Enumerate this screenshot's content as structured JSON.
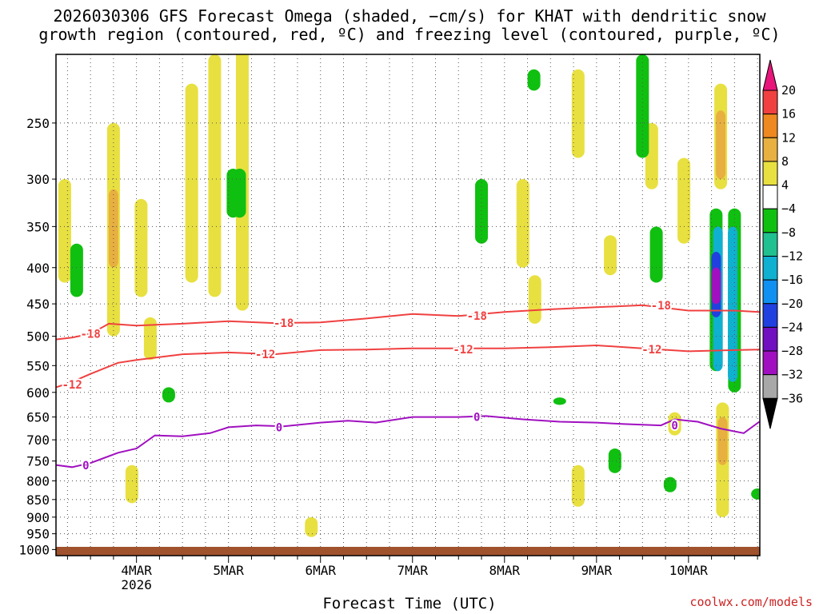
{
  "chart_data": {
    "type": "heatmap",
    "title_line1": "2026030306 GFS Forecast Omega (shaded, −cm/s) for KHAT with dendritic snow",
    "title_line2": "growth region (contoured, red, ºC) and freezing level (contoured, purple, ºC)",
    "xlabel": "Forecast Time (UTC)",
    "credit": "coolwx.com/models",
    "yaxis": {
      "scale": "pressure",
      "ticks": [
        250,
        300,
        350,
        400,
        450,
        500,
        550,
        600,
        650,
        700,
        750,
        800,
        850,
        900,
        950,
        1000
      ],
      "range": [
        1020,
        200
      ]
    },
    "xaxis": {
      "range_days": [
        3.125,
        10.775
      ],
      "ticks": [
        {
          "value": 4,
          "label": "4MAR",
          "sublabel": "2026"
        },
        {
          "value": 5,
          "label": "5MAR"
        },
        {
          "value": 6,
          "label": "6MAR"
        },
        {
          "value": 7,
          "label": "7MAR"
        },
        {
          "value": 8,
          "label": "8MAR"
        },
        {
          "value": 9,
          "label": "9MAR"
        },
        {
          "value": 10,
          "label": "10MAR"
        }
      ]
    },
    "grid": true,
    "colorbar": {
      "labels": [
        "20",
        "16",
        "12",
        "8",
        "4",
        "−4",
        "−8",
        "−12",
        "−16",
        "−20",
        "−24",
        "−28",
        "−32",
        "−36"
      ],
      "colors": [
        "#e8157a",
        "#f04040",
        "#ee8820",
        "#e8b040",
        "#e8e040",
        "#ffffff",
        "#10c010",
        "#20c090",
        "#10b0d0",
        "#1090f0",
        "#2040e0",
        "#7010c0",
        "#a010c0",
        "#a8a8a8",
        "#000000"
      ]
    },
    "contours": [
      {
        "level_label": "-18",
        "color": "#f04040",
        "points": [
          [
            3.13,
            505
          ],
          [
            3.3,
            502
          ],
          [
            3.5,
            496
          ],
          [
            3.7,
            480
          ],
          [
            4,
            483
          ],
          [
            4.5,
            480
          ],
          [
            5,
            476
          ],
          [
            5.5,
            479
          ],
          [
            6,
            478
          ],
          [
            6.5,
            472
          ],
          [
            7,
            465
          ],
          [
            7.5,
            468
          ],
          [
            8,
            462
          ],
          [
            8.5,
            458
          ],
          [
            9,
            455
          ],
          [
            9.5,
            452
          ],
          [
            10,
            460
          ],
          [
            10.5,
            460
          ],
          [
            10.77,
            462
          ]
        ],
        "label_at": [
          [
            3.5,
            496
          ],
          [
            5.6,
            479
          ],
          [
            7.7,
            468
          ],
          [
            9.7,
            452
          ]
        ]
      },
      {
        "level_label": "-12",
        "color": "#f04040",
        "points": [
          [
            3.13,
            590
          ],
          [
            3.3,
            580
          ],
          [
            3.5,
            565
          ],
          [
            3.8,
            545
          ],
          [
            4,
            540
          ],
          [
            4.5,
            530
          ],
          [
            5,
            527
          ],
          [
            5.5,
            530
          ],
          [
            6,
            523
          ],
          [
            6.5,
            522
          ],
          [
            7,
            520
          ],
          [
            7.5,
            520
          ],
          [
            8,
            520
          ],
          [
            8.5,
            518
          ],
          [
            9,
            515
          ],
          [
            9.5,
            520
          ],
          [
            10,
            525
          ],
          [
            10.5,
            523
          ],
          [
            10.77,
            522
          ]
        ],
        "label_at": [
          [
            3.3,
            585
          ],
          [
            5.4,
            530
          ],
          [
            7.55,
            522
          ],
          [
            9.6,
            522
          ]
        ]
      },
      {
        "level_label": "0",
        "color": "#a010c0",
        "points": [
          [
            3.13,
            760
          ],
          [
            3.3,
            765
          ],
          [
            3.5,
            755
          ],
          [
            3.8,
            730
          ],
          [
            4,
            720
          ],
          [
            4.2,
            690
          ],
          [
            4.5,
            692
          ],
          [
            4.8,
            685
          ],
          [
            5,
            672
          ],
          [
            5.3,
            668
          ],
          [
            5.6,
            670
          ],
          [
            6,
            662
          ],
          [
            6.3,
            658
          ],
          [
            6.6,
            662
          ],
          [
            7,
            650
          ],
          [
            7.5,
            650
          ],
          [
            7.8,
            648
          ],
          [
            8.2,
            655
          ],
          [
            8.6,
            660
          ],
          [
            9,
            662
          ],
          [
            9.3,
            665
          ],
          [
            9.7,
            668
          ],
          [
            9.85,
            655
          ],
          [
            10.1,
            660
          ],
          [
            10.35,
            675
          ],
          [
            10.6,
            685
          ],
          [
            10.77,
            660
          ]
        ],
        "label_at": [
          [
            3.45,
            760
          ],
          [
            5.55,
            672
          ],
          [
            7.7,
            650
          ],
          [
            9.85,
            668
          ]
        ]
      }
    ],
    "shaded_regions": [
      {
        "value": 6,
        "x": 3.22,
        "p_top": 300,
        "p_bot": 420
      },
      {
        "value": 6,
        "x": 3.75,
        "p_top": 250,
        "p_bot": 500
      },
      {
        "value": 10,
        "x": 3.75,
        "p_top": 310,
        "p_bot": 400
      },
      {
        "value": 6,
        "x": 4.05,
        "p_top": 320,
        "p_bot": 440
      },
      {
        "value": 6,
        "x": 4.15,
        "p_top": 470,
        "p_bot": 540
      },
      {
        "value": 6,
        "x": 4.6,
        "p_top": 220,
        "p_bot": 420
      },
      {
        "value": 6,
        "x": 4.85,
        "p_top": 200,
        "p_bot": 440
      },
      {
        "value": 6,
        "x": 5.15,
        "p_top": 190,
        "p_bot": 460
      },
      {
        "value": 6,
        "x": 3.95,
        "p_top": 760,
        "p_bot": 860
      },
      {
        "value": 6,
        "x": 5.9,
        "p_top": 900,
        "p_bot": 960
      },
      {
        "value": 6,
        "x": 8.33,
        "p_top": 410,
        "p_bot": 480
      },
      {
        "value": 6,
        "x": 8.8,
        "p_top": 210,
        "p_bot": 280
      },
      {
        "value": 6,
        "x": 8.8,
        "p_top": 760,
        "p_bot": 870
      },
      {
        "value": 6,
        "x": 8.2,
        "p_top": 300,
        "p_bot": 400
      },
      {
        "value": 6,
        "x": 9.15,
        "p_top": 360,
        "p_bot": 410
      },
      {
        "value": 6,
        "x": 9.6,
        "p_top": 250,
        "p_bot": 310
      },
      {
        "value": 6,
        "x": 9.95,
        "p_top": 280,
        "p_bot": 370
      },
      {
        "value": 6,
        "x": 9.85,
        "p_top": 640,
        "p_bot": 690
      },
      {
        "value": 6,
        "x": 10.35,
        "p_top": 220,
        "p_bot": 310
      },
      {
        "value": 10,
        "x": 10.35,
        "p_top": 240,
        "p_bot": 300
      },
      {
        "value": 6,
        "x": 10.37,
        "p_top": 620,
        "p_bot": 900
      },
      {
        "value": 10,
        "x": 10.37,
        "p_top": 650,
        "p_bot": 760
      },
      {
        "value": -6,
        "x": 3.35,
        "p_top": 370,
        "p_bot": 440
      },
      {
        "value": -6,
        "x": 4.35,
        "p_top": 590,
        "p_bot": 620
      },
      {
        "value": -6,
        "x": 5.05,
        "p_top": 290,
        "p_bot": 340
      },
      {
        "value": -6,
        "x": 5.12,
        "p_top": 290,
        "p_bot": 340
      },
      {
        "value": -6,
        "x": 7.75,
        "p_top": 300,
        "p_bot": 370
      },
      {
        "value": -6,
        "x": 8.32,
        "p_top": 210,
        "p_bot": 225
      },
      {
        "value": -6,
        "x": 8.6,
        "p_top": 610,
        "p_bot": 625
      },
      {
        "value": -6,
        "x": 9.2,
        "p_top": 720,
        "p_bot": 780
      },
      {
        "value": -6,
        "x": 9.5,
        "p_top": 200,
        "p_bot": 280
      },
      {
        "value": -6,
        "x": 9.65,
        "p_top": 350,
        "p_bot": 420
      },
      {
        "value": -6,
        "x": 9.8,
        "p_top": 790,
        "p_bot": 830
      },
      {
        "value": -6,
        "x": 10.3,
        "p_top": 330,
        "p_bot": 560
      },
      {
        "value": -6,
        "x": 10.5,
        "p_top": 330,
        "p_bot": 600
      },
      {
        "value": -6,
        "x": 10.75,
        "p_top": 820,
        "p_bot": 850
      },
      {
        "value": -14,
        "x": 10.32,
        "p_top": 350,
        "p_bot": 560
      },
      {
        "value": -14,
        "x": 10.48,
        "p_top": 350,
        "p_bot": 580
      },
      {
        "value": -22,
        "x": 10.3,
        "p_top": 380,
        "p_bot": 470
      },
      {
        "value": -30,
        "x": 10.3,
        "p_top": 400,
        "p_bot": 450
      }
    ]
  }
}
